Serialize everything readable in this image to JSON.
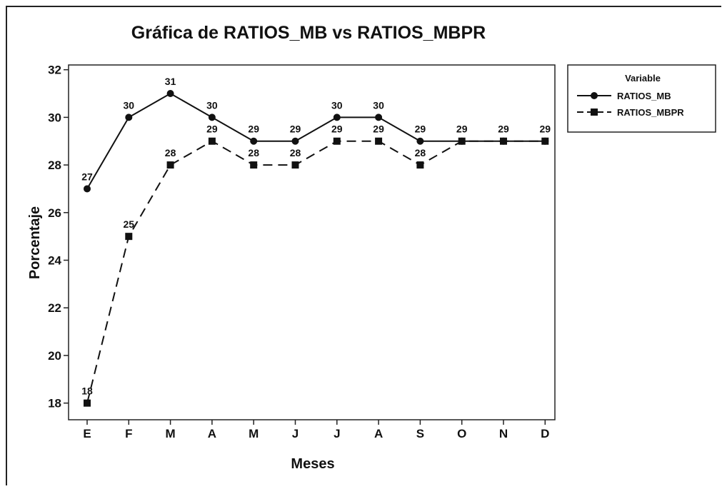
{
  "chart_data": {
    "type": "line",
    "title": "Gráfica de RATIOS_MB vs RATIOS_MBPR",
    "xlabel": "Meses",
    "ylabel": "Porcentaje",
    "categories": [
      "E",
      "F",
      "M",
      "A",
      "M",
      "J",
      "J",
      "A",
      "S",
      "O",
      "N",
      "D"
    ],
    "yticks": [
      18,
      20,
      22,
      24,
      26,
      28,
      30,
      32
    ],
    "ylim": [
      17.3,
      32.2
    ],
    "grid": false,
    "legend": {
      "title": "Variable",
      "placement": "right"
    },
    "series": [
      {
        "name": "RATIOS_MB",
        "values": [
          27,
          30,
          31,
          30,
          29,
          29,
          30,
          30,
          29,
          29,
          29,
          29
        ],
        "labels": [
          "27",
          "30",
          "31",
          "30",
          "29",
          "29",
          "30",
          "30",
          "29",
          "",
          "",
          ""
        ],
        "marker": "circle",
        "line": "solid",
        "color": "#111111"
      },
      {
        "name": "RATIOS_MBPR",
        "values": [
          18,
          25,
          28,
          29,
          28,
          28,
          29,
          29,
          28,
          29,
          29,
          29
        ],
        "labels": [
          "18",
          "25",
          "28",
          "29",
          "28",
          "28",
          "29",
          "29",
          "28",
          "29",
          "29",
          "29"
        ],
        "marker": "square",
        "line": "dashed",
        "color": "#111111"
      }
    ]
  }
}
